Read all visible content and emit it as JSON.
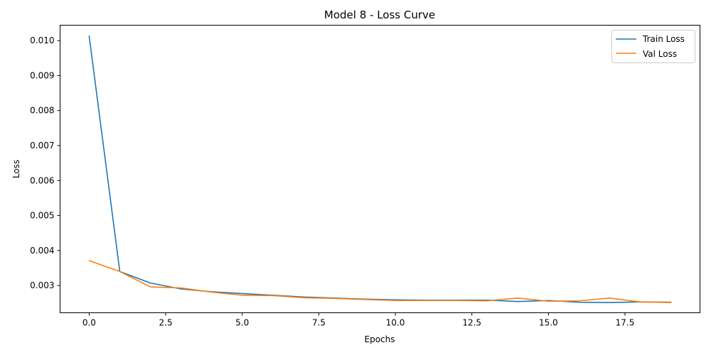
{
  "chart_data": {
    "type": "line",
    "title": "Model 8 - Loss Curve",
    "xlabel": "Epochs",
    "ylabel": "Loss",
    "xlim": [
      -0.95,
      19.95
    ],
    "ylim": [
      0.00222,
      0.01044
    ],
    "xticks": [
      0.0,
      2.5,
      5.0,
      7.5,
      10.0,
      12.5,
      15.0,
      17.5
    ],
    "xtick_labels": [
      "0.0",
      "2.5",
      "5.0",
      "7.5",
      "10.0",
      "12.5",
      "15.0",
      "17.5"
    ],
    "yticks": [
      0.003,
      0.004,
      0.005,
      0.006,
      0.007,
      0.008,
      0.009,
      0.01
    ],
    "ytick_labels": [
      "0.003",
      "0.004",
      "0.005",
      "0.006",
      "0.007",
      "0.008",
      "0.009",
      "0.010"
    ],
    "grid": false,
    "legend_position": "top-right",
    "x": [
      0,
      1,
      2,
      3,
      4,
      5,
      6,
      7,
      8,
      9,
      10,
      11,
      12,
      13,
      14,
      15,
      16,
      17,
      18,
      19
    ],
    "series": [
      {
        "name": "Train Loss",
        "color": "#1f77b4",
        "values": [
          0.01013,
          0.0034,
          0.00307,
          0.0029,
          0.00282,
          0.00277,
          0.00272,
          0.00267,
          0.00264,
          0.00261,
          0.00259,
          0.00258,
          0.00258,
          0.00258,
          0.00254,
          0.00257,
          0.00252,
          0.00251,
          0.00253,
          0.00252
        ]
      },
      {
        "name": "Val Loss",
        "color": "#ff7f0e",
        "values": [
          0.00371,
          0.0034,
          0.00296,
          0.00293,
          0.00281,
          0.00272,
          0.00271,
          0.00265,
          0.00263,
          0.0026,
          0.00257,
          0.00257,
          0.00257,
          0.00256,
          0.00264,
          0.00255,
          0.00256,
          0.00264,
          0.00253,
          0.00251
        ]
      }
    ]
  }
}
